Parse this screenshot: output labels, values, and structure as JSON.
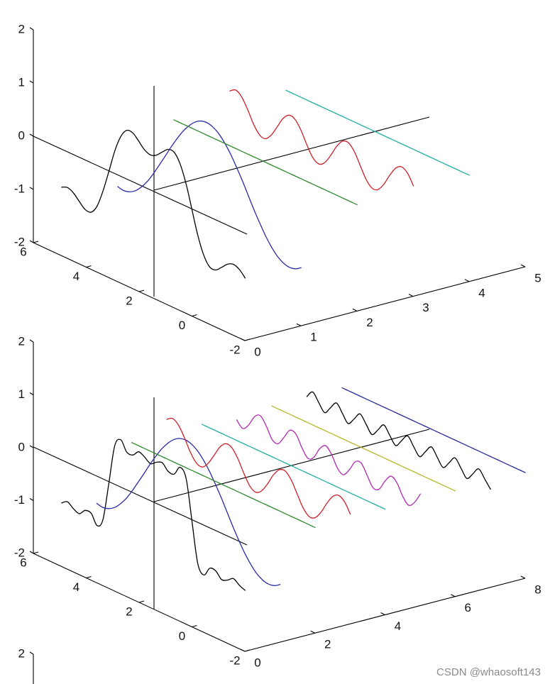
{
  "chart_data": [
    {
      "type": "line3d",
      "xlim": [
        0,
        5
      ],
      "ylim": [
        -2,
        6
      ],
      "zlim": [
        -2,
        2
      ],
      "xticks": [
        0,
        1,
        2,
        3,
        4,
        5
      ],
      "yticks": [
        -2,
        0,
        2,
        4,
        6
      ],
      "zticks": [
        -2,
        -1,
        0,
        1,
        2
      ],
      "y": [
        -2.02,
        -1.8,
        -1.57,
        -1.35,
        -1.12,
        -0.9,
        -0.67,
        -0.45,
        -0.22,
        0,
        0.22,
        0.45,
        0.67,
        0.9,
        1.12,
        1.35,
        1.57,
        1.8,
        2.02,
        2.24,
        2.47,
        2.69,
        2.92,
        3.14,
        3.37,
        3.59,
        3.81,
        4.04,
        4.26,
        4.49,
        4.71,
        4.94
      ],
      "series": [
        {
          "color": "#000000",
          "x": 0,
          "values": [
            -0.827,
            -0.714,
            -0.667,
            -0.714,
            -0.827,
            -0.927,
            -0.923,
            -0.759,
            -0.43,
            0,
            0.43,
            0.759,
            0.923,
            0.927,
            0.827,
            0.714,
            0.667,
            0.714,
            0.827,
            0.927,
            0.923,
            0.759,
            0.43,
            0,
            -0.43,
            -0.759,
            -0.923,
            -0.927,
            -0.827,
            -0.714,
            -0.667,
            -0.714
          ]
        },
        {
          "color": "#2a2aa8",
          "x": 1,
          "values": [
            -0.901,
            -0.975,
            -1,
            -0.975,
            -0.901,
            -0.782,
            -0.623,
            -0.434,
            -0.222,
            0,
            0.222,
            0.434,
            0.623,
            0.782,
            0.901,
            0.975,
            1,
            0.975,
            0.901,
            0.782,
            0.623,
            0.434,
            0.222,
            0,
            -0.222,
            -0.434,
            -0.623,
            -0.782,
            -0.901,
            -0.975,
            -1,
            -0.975
          ]
        },
        {
          "color": "#2e8a2e",
          "x": 2,
          "values": [
            0,
            0,
            0,
            0,
            0,
            0,
            0,
            0,
            0,
            0,
            0,
            0,
            0,
            0,
            0,
            0,
            0,
            0,
            0,
            0,
            0,
            0,
            0,
            0,
            0,
            0,
            0,
            0,
            0,
            0,
            0,
            0
          ]
        },
        {
          "color": "#d0202a",
          "x": 3,
          "values": [
            0.074,
            0.261,
            0.333,
            0.261,
            0.074,
            -0.145,
            -0.3,
            -0.325,
            -0.208,
            0,
            0.208,
            0.325,
            0.3,
            0.145,
            -0.074,
            -0.261,
            -0.333,
            -0.261,
            -0.074,
            0.145,
            0.3,
            0.325,
            0.208,
            0,
            -0.208,
            -0.325,
            -0.3,
            -0.145,
            0.074,
            0.261,
            0.333,
            0.261
          ]
        },
        {
          "color": "#22b0a2",
          "x": 4,
          "values": [
            0,
            0,
            0,
            0,
            0,
            0,
            0,
            0,
            0,
            0,
            0,
            0,
            0,
            0,
            0,
            0,
            0,
            0,
            0,
            0,
            0,
            0,
            0,
            0,
            0,
            0,
            0,
            0,
            0,
            0,
            0,
            0
          ]
        }
      ]
    },
    {
      "type": "line3d",
      "xlim": [
        0,
        8
      ],
      "ylim": [
        -2,
        6
      ],
      "zlim": [
        -2,
        2
      ],
      "xticks": [
        0,
        2,
        4,
        6,
        8
      ],
      "yticks": [
        -2,
        0,
        2,
        4,
        6
      ],
      "zticks": [
        -2,
        -1,
        0,
        1,
        2
      ],
      "y": [
        -2.02,
        -1.8,
        -1.57,
        -1.35,
        -1.12,
        -0.9,
        -0.67,
        -0.45,
        -0.22,
        0,
        0.22,
        0.45,
        0.67,
        0.9,
        1.12,
        1.35,
        1.57,
        1.8,
        2.02,
        2.24,
        2.47,
        2.69,
        2.92,
        3.14,
        3.37,
        3.59,
        3.81,
        4.04,
        4.26,
        4.49,
        4.71,
        4.94
      ],
      "series": [
        {
          "color": "#000000",
          "x": 0,
          "values": [
            -0.845,
            -0.801,
            -0.724,
            -0.801,
            -0.845,
            -0.732,
            -0.735,
            -0.915,
            -0.753,
            0,
            0.753,
            0.915,
            0.735,
            0.732,
            0.845,
            0.801,
            0.724,
            0.801,
            0.845,
            0.732,
            0.735,
            0.915,
            0.753,
            0,
            -0.753,
            -0.915,
            -0.735,
            -0.732,
            -0.845,
            -0.801,
            -0.724,
            -0.801
          ]
        },
        {
          "color": "#2a2aa8",
          "x": 1,
          "values": [
            -0.901,
            -0.975,
            -1,
            -0.975,
            -0.901,
            -0.782,
            -0.623,
            -0.434,
            -0.222,
            0,
            0.222,
            0.434,
            0.623,
            0.782,
            0.901,
            0.975,
            1,
            0.975,
            0.901,
            0.782,
            0.623,
            0.434,
            0.222,
            0,
            -0.222,
            -0.434,
            -0.623,
            -0.782,
            -0.901,
            -0.975,
            -1,
            -0.975
          ]
        },
        {
          "color": "#2e8a2e",
          "x": 2,
          "values": [
            0,
            0,
            0,
            0,
            0,
            0,
            0,
            0,
            0,
            0,
            0,
            0,
            0,
            0,
            0,
            0,
            0,
            0,
            0,
            0,
            0,
            0,
            0,
            0,
            0,
            0,
            0,
            0,
            0,
            0,
            0,
            0
          ]
        },
        {
          "color": "#d0202a",
          "x": 3,
          "values": [
            0.074,
            0.261,
            0.333,
            0.261,
            0.074,
            -0.145,
            -0.3,
            -0.325,
            -0.208,
            0,
            0.208,
            0.325,
            0.3,
            0.145,
            -0.074,
            -0.261,
            -0.333,
            -0.261,
            -0.074,
            0.145,
            0.3,
            0.325,
            0.208,
            0,
            -0.208,
            -0.325,
            -0.3,
            -0.145,
            0.074,
            0.261,
            0.333,
            0.261
          ]
        },
        {
          "color": "#22b0a2",
          "x": 4,
          "values": [
            0,
            0,
            0,
            0,
            0,
            0,
            0,
            0,
            0,
            0,
            0,
            0,
            0,
            0,
            0,
            0,
            0,
            0,
            0,
            0,
            0,
            0,
            0,
            0,
            0,
            0,
            0,
            0,
            0,
            0,
            0,
            0
          ]
        },
        {
          "color": "#b02ab0",
          "x": 5,
          "values": [
            0.125,
            -0.087,
            -0.2,
            -0.087,
            0.125,
            0.195,
            0.045,
            -0.156,
            -0.18,
            0,
            0.18,
            0.156,
            -0.045,
            -0.195,
            -0.125,
            0.087,
            0.2,
            0.087,
            -0.125,
            -0.195,
            -0.045,
            0.156,
            0.18,
            0,
            -0.18,
            -0.156,
            0.045,
            0.195,
            0.125,
            -0.087,
            -0.2,
            -0.087
          ]
        },
        {
          "color": "#b8b82a",
          "x": 6,
          "values": [
            0,
            0,
            0,
            0,
            0,
            0,
            0,
            0,
            0,
            0,
            0,
            0,
            0,
            0,
            0,
            0,
            0,
            0,
            0,
            0,
            0,
            0,
            0,
            0,
            0,
            0,
            0,
            0,
            0,
            0,
            0,
            0
          ]
        },
        {
          "color": "#000000",
          "x": 7,
          "values": [
            -0.143,
            0,
            0.143,
            0,
            -0.143,
            0,
            0.143,
            0,
            -0.143,
            0,
            0.143,
            0,
            -0.143,
            0,
            0.143,
            0,
            -0.143,
            0,
            0.143,
            0,
            -0.143,
            0,
            0.143,
            0,
            -0.143,
            0,
            0.143,
            0,
            -0.143,
            0,
            0.143,
            0
          ]
        },
        {
          "color": "#2a2a9a",
          "x": 8,
          "values": [
            0,
            0,
            0,
            0,
            0,
            0,
            0,
            0,
            0,
            0,
            0,
            0,
            0,
            0,
            0,
            0,
            0,
            0,
            0,
            0,
            0,
            0,
            0,
            0,
            0,
            0,
            0,
            0,
            0,
            0,
            0,
            0
          ]
        }
      ]
    },
    {
      "type": "line3d",
      "zticks": [
        2
      ]
    }
  ],
  "watermark": "CSDN @whaosoft143"
}
